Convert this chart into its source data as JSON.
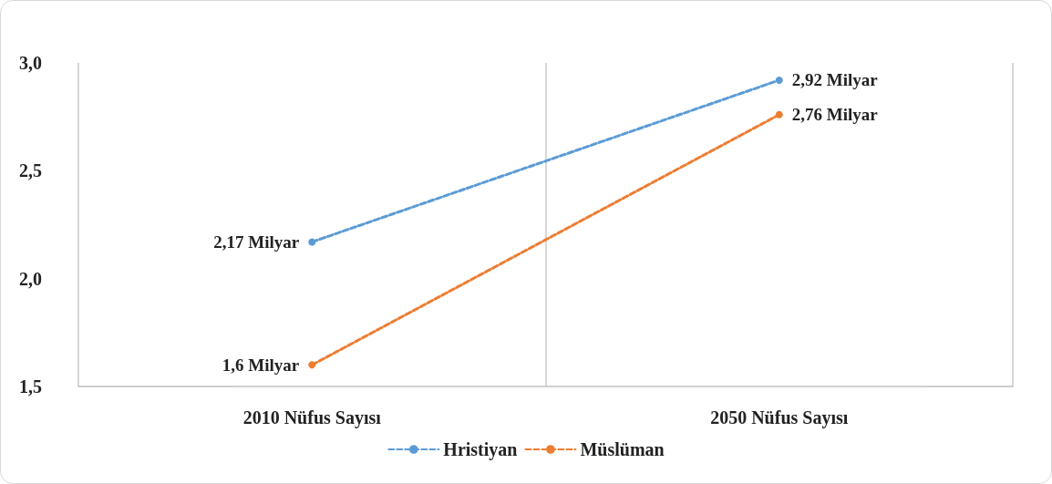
{
  "chart_data": {
    "type": "line",
    "categories": [
      "2010 Nüfus Sayısı",
      "2050 Nüfus Sayısı"
    ],
    "ylim": [
      1.5,
      3.0
    ],
    "yticks": [
      {
        "value": 1.5,
        "label": "1,5"
      },
      {
        "value": 2.0,
        "label": "2,0"
      },
      {
        "value": 2.5,
        "label": "2,5"
      },
      {
        "value": 3.0,
        "label": "3,0"
      }
    ],
    "grid": "x",
    "legend": "bottom",
    "marker": "circle",
    "series": [
      {
        "name": "Hristiyan",
        "color": "#5b9bd5",
        "values": [
          2.17,
          2.92
        ],
        "value_labels": [
          "2,17 Milyar",
          "2,92 Milyar"
        ],
        "line_style": "dashed"
      },
      {
        "name": "Müslüman",
        "color": "#ed7d31",
        "values": [
          1.6,
          2.76
        ],
        "value_labels": [
          "1,6 Milyar",
          "2,76 Milyar"
        ],
        "line_style": "dashed"
      }
    ]
  }
}
